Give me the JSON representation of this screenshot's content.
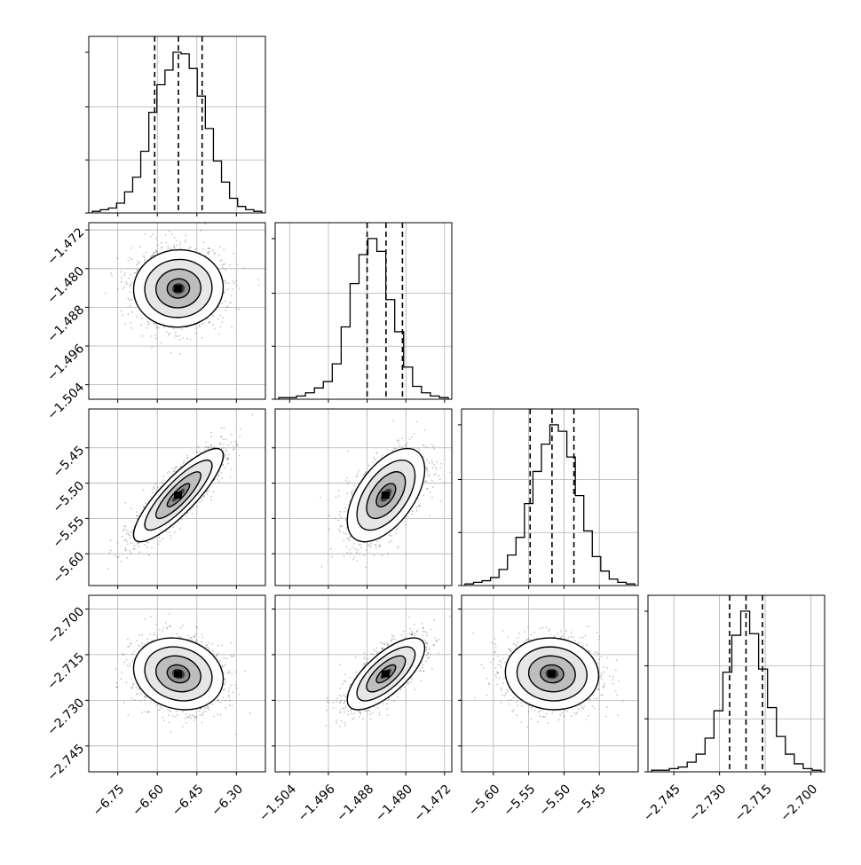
{
  "chart_data": {
    "type": "corner",
    "n_params": 4,
    "params": [
      {
        "ticks": [
          -6.75,
          -6.6,
          -6.45,
          -6.3
        ],
        "tick_labels": [
          "−6.75",
          "−6.60",
          "−6.45",
          "−6.30"
        ],
        "range": [
          -6.86,
          -6.19
        ],
        "quantiles": [
          -6.61,
          -6.52,
          -6.43
        ],
        "hist": [
          1,
          2,
          3,
          6,
          13,
          22,
          38,
          62,
          79,
          88,
          99,
          98,
          89,
          72,
          52,
          32,
          19,
          9,
          4,
          2,
          1
        ]
      },
      {
        "ticks": [
          -1.504,
          -1.496,
          -1.488,
          -1.48,
          -1.472
        ],
        "tick_labels": [
          "−1.504",
          "−1.496",
          "−1.488",
          "−1.480",
          "−1.472"
        ],
        "range": [
          -1.507,
          -1.4705
        ],
        "quantiles": [
          -1.488,
          -1.4841,
          -1.4807
        ],
        "hist": [
          1,
          1,
          2,
          4,
          7,
          11,
          22,
          45,
          72,
          90,
          100,
          92,
          62,
          42,
          20,
          8,
          4,
          2,
          1
        ]
      },
      {
        "ticks": [
          -5.6,
          -5.55,
          -5.5,
          -5.45
        ],
        "tick_labels": [
          "−5.60",
          "−5.55",
          "−5.50",
          "−5.45"
        ],
        "range": [
          -5.645,
          -5.395
        ],
        "quantiles": [
          -5.548,
          -5.517,
          -5.486
        ],
        "hist": [
          1,
          2,
          3,
          5,
          10,
          19,
          30,
          51,
          71,
          88,
          100,
          96,
          80,
          56,
          34,
          18,
          9,
          4,
          2,
          1
        ]
      },
      {
        "ticks": [
          -2.745,
          -2.73,
          -2.715,
          -2.7
        ],
        "tick_labels": [
          "−2.745",
          "−2.730",
          "−2.715",
          "−2.700"
        ],
        "range": [
          -2.7535,
          -2.6955
        ],
        "quantiles": [
          -2.7267,
          -2.7213,
          -2.7159
        ],
        "hist": [
          1,
          1,
          2,
          3,
          6,
          11,
          21,
          38,
          62,
          85,
          100,
          86,
          64,
          40,
          22,
          11,
          5,
          2,
          1
        ]
      }
    ],
    "pairs": [
      {
        "x": 0,
        "y": 1,
        "mean": [
          -6.52,
          -1.4841
        ],
        "sd": [
          0.085,
          0.004
        ],
        "rho": 0.03
      },
      {
        "x": 0,
        "y": 2,
        "mean": [
          -6.52,
          -5.517
        ],
        "sd": [
          0.085,
          0.033
        ],
        "rho": 0.85
      },
      {
        "x": 1,
        "y": 2,
        "mean": [
          -1.4841,
          -5.517
        ],
        "sd": [
          0.004,
          0.033
        ],
        "rho": 0.55
      },
      {
        "x": 0,
        "y": 3,
        "mean": [
          -6.52,
          -2.7213
        ],
        "sd": [
          0.085,
          0.0059
        ],
        "rho": -0.15
      },
      {
        "x": 1,
        "y": 3,
        "mean": [
          -1.4841,
          -2.7213
        ],
        "sd": [
          0.004,
          0.0059
        ],
        "rho": 0.72
      },
      {
        "x": 2,
        "y": 3,
        "mean": [
          -5.517,
          -2.7213
        ],
        "sd": [
          0.033,
          0.0059
        ],
        "rho": -0.05
      }
    ],
    "contour_levels_sigma": [
      0.5,
      1.0,
      1.5,
      2.0
    ],
    "grid": true,
    "colors": {
      "line": "#000000",
      "points": "#555555",
      "grid": "#b0b0b0",
      "frame": "#000000"
    }
  }
}
